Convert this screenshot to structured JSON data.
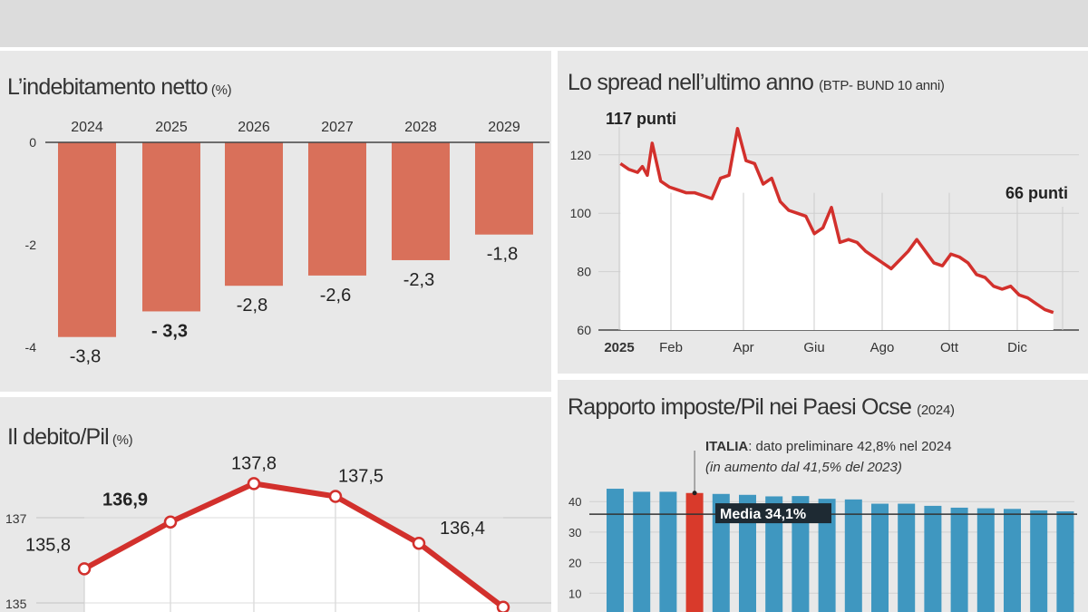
{
  "colors": {
    "deficit_bar": "#d9705a",
    "spread_line": "#d2302c",
    "debt_line": "#d2302c",
    "tax_bar": "#3f97c0",
    "tax_italy": "#d93a2b",
    "panel_bg": "#e8e8e8",
    "header_band": "#dcdcdc"
  },
  "chart_data": [
    {
      "type": "bar",
      "title": "L’indebitamento netto",
      "unit": "(%)",
      "categories": [
        "2024",
        "2025",
        "2026",
        "2027",
        "2028",
        "2029"
      ],
      "values": [
        -3.8,
        -3.3,
        -2.8,
        -2.6,
        -2.3,
        -1.8
      ],
      "labels": [
        "-3,8",
        "- 3,3",
        "-2,8",
        "-2,6",
        "-2,3",
        "-1,8"
      ],
      "ylim": [
        -4,
        0
      ],
      "yticks": [
        "0",
        "-2",
        "-4"
      ],
      "grid": false
    },
    {
      "type": "line",
      "title": "Lo spread nell’ultimo anno",
      "unit": "(BTP- BUND 10 anni)",
      "xticks": [
        "2025",
        "Feb",
        "Apr",
        "Giu",
        "Ago",
        "Ott",
        "Dic"
      ],
      "yticks": [
        "120",
        "100",
        "80",
        "60"
      ],
      "ylim": [
        60,
        130
      ],
      "annotations": [
        "117 punti",
        "66 punti"
      ],
      "x": [
        "2025-01-02",
        "2025-01-09",
        "2025-01-16",
        "2025-01-20",
        "2025-01-24",
        "2025-01-28",
        "2025-02-04",
        "2025-02-11",
        "2025-02-18",
        "2025-02-25",
        "2025-03-04",
        "2025-03-11",
        "2025-03-18",
        "2025-03-25",
        "2025-04-01",
        "2025-04-08",
        "2025-04-15",
        "2025-04-22",
        "2025-04-29",
        "2025-05-06",
        "2025-05-13",
        "2025-05-20",
        "2025-05-27",
        "2025-06-03",
        "2025-06-10",
        "2025-06-17",
        "2025-06-24",
        "2025-07-01",
        "2025-07-08",
        "2025-07-15",
        "2025-07-22",
        "2025-07-29",
        "2025-08-05",
        "2025-08-12",
        "2025-08-19",
        "2025-08-26",
        "2025-09-02",
        "2025-09-09",
        "2025-09-16",
        "2025-09-23",
        "2025-09-30",
        "2025-10-07",
        "2025-10-14",
        "2025-10-21",
        "2025-10-28",
        "2025-11-04",
        "2025-11-11",
        "2025-11-18",
        "2025-11-25",
        "2025-12-02",
        "2025-12-09",
        "2025-12-16",
        "2025-12-23"
      ],
      "values": [
        117,
        115,
        114,
        116,
        113,
        124,
        111,
        109,
        108,
        107,
        107,
        106,
        105,
        112,
        113,
        129,
        118,
        117,
        110,
        112,
        104,
        101,
        100,
        99,
        93,
        95,
        102,
        90,
        91,
        90,
        87,
        85,
        83,
        81,
        84,
        87,
        91,
        87,
        83,
        82,
        86,
        85,
        83,
        79,
        78,
        75,
        74,
        75,
        72,
        71,
        69,
        67,
        66
      ],
      "grid": true
    },
    {
      "type": "line",
      "title": "Il debito/Pil",
      "unit": "(%)",
      "yticks": [
        "137",
        "135"
      ],
      "values": [
        135.8,
        136.9,
        137.8,
        137.5,
        136.4,
        134.9
      ],
      "labels": [
        "135,8",
        "136,9",
        "137,8",
        "137,5",
        "136,4",
        ""
      ],
      "grid": true
    },
    {
      "type": "bar",
      "title": "Rapporto imposte/Pil nei Paesi Ocse",
      "unit": "(2024)",
      "yticks": [
        "40",
        "30",
        "20",
        "10"
      ],
      "values": [
        44.2,
        43.2,
        43.2,
        42.8,
        42.5,
        42.2,
        41.7,
        41.8,
        40.9,
        40.7,
        39.3,
        39.3,
        38.6,
        38.0,
        37.8,
        37.6,
        37.1,
        36.8
      ],
      "highlight_index": 3,
      "annotation_bold": "ITALIA",
      "annotation_text": ": dato preliminare 42,8% nel 2024",
      "annotation_italic": "(in aumento dal 41,5% del 2023)",
      "average": 34.1,
      "average_label": "Media 34,1%",
      "grid": true
    }
  ]
}
